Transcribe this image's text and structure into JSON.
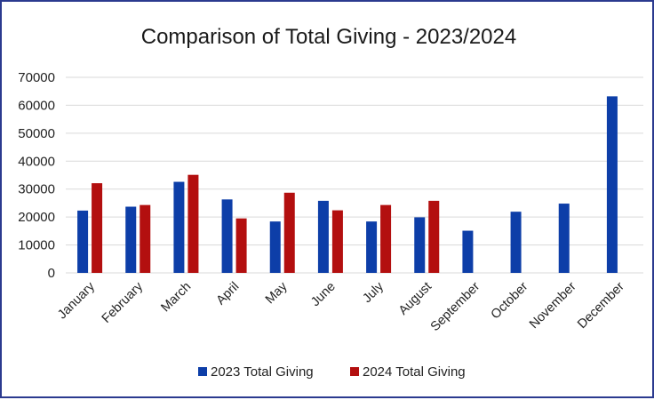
{
  "chart_data": {
    "type": "bar",
    "title": "Comparison of Total Giving - 2023/2024",
    "xlabel": "",
    "ylabel": "",
    "ylim": [
      0,
      70000
    ],
    "yticks": [
      0,
      10000,
      20000,
      30000,
      40000,
      50000,
      60000,
      70000
    ],
    "grid": true,
    "legend_position": "bottom",
    "categories": [
      "January",
      "February",
      "March",
      "April",
      "May",
      "June",
      "July",
      "August",
      "September",
      "October",
      "November",
      "December"
    ],
    "series": [
      {
        "name": "2023 Total Giving",
        "color": "#0d3ea8",
        "values": [
          22300,
          23700,
          32600,
          26300,
          18400,
          25800,
          18400,
          19900,
          15100,
          21900,
          24800,
          63200
        ]
      },
      {
        "name": "2024 Total Giving",
        "color": "#b30f0f",
        "values": [
          32100,
          24300,
          35100,
          19500,
          28700,
          22400,
          24300,
          25800,
          null,
          null,
          null,
          null
        ]
      }
    ]
  }
}
